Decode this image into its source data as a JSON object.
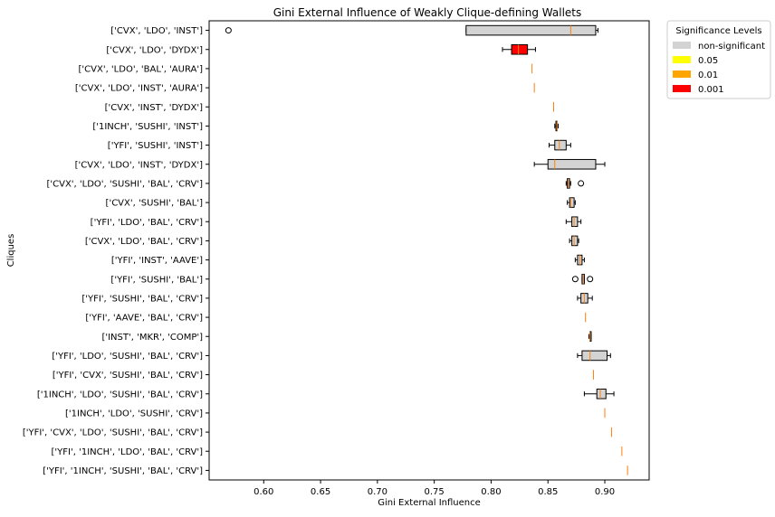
{
  "chart_data": {
    "type": "boxplot",
    "orientation": "horizontal",
    "title": "Gini External Influence of Weakly Clique-defining Wallets",
    "xlabel": "Gini External Influence",
    "ylabel": "Cliques",
    "xlim": [
      0.552,
      0.939
    ],
    "xticks": [
      0.6,
      0.65,
      0.7,
      0.75,
      0.8,
      0.85,
      0.9
    ],
    "xtick_labels": [
      "0.60",
      "0.65",
      "0.70",
      "0.75",
      "0.80",
      "0.85",
      "0.90"
    ],
    "grid": false,
    "legend": {
      "title": "Significance Levels",
      "placement": "top-right-outside",
      "entries": [
        {
          "label": "non-significant",
          "color": "#d3d3d3"
        },
        {
          "label": "0.05",
          "color": "#ffff00"
        },
        {
          "label": "0.01",
          "color": "#ffa500"
        },
        {
          "label": "0.001",
          "color": "#ff0000"
        }
      ]
    },
    "median_color": "#ff7f0e",
    "categories": [
      "['CVX', 'LDO', 'INST']",
      "['CVX', 'LDO', 'DYDX']",
      "['CVX', 'LDO', 'BAL', 'AURA']",
      "['CVX', 'LDO', 'INST', 'AURA']",
      "['CVX', 'INST', 'DYDX']",
      "['1INCH', 'SUSHI', 'INST']",
      "['YFI', 'SUSHI', 'INST']",
      "['CVX', 'LDO', 'INST', 'DYDX']",
      "['CVX', 'LDO', 'SUSHI', 'BAL', 'CRV']",
      "['CVX', 'SUSHI', 'BAL']",
      "['YFI', 'LDO', 'BAL', 'CRV']",
      "['CVX', 'LDO', 'BAL', 'CRV']",
      "['YFI', 'INST', 'AAVE']",
      "['YFI', 'SUSHI', 'BAL']",
      "['YFI', 'SUSHI', 'BAL', 'CRV']",
      "['YFI', 'AAVE', 'BAL', 'CRV']",
      "['INST', 'MKR', 'COMP']",
      "['YFI', 'LDO', 'SUSHI', 'BAL', 'CRV']",
      "['YFI', 'CVX', 'SUSHI', 'BAL', 'CRV']",
      "['1INCH', 'LDO', 'SUSHI', 'BAL', 'CRV']",
      "['1INCH', 'LDO', 'SUSHI', 'CRV']",
      "['YFI', 'CVX', 'LDO', 'SUSHI', 'BAL', 'CRV']",
      "['YFI', '1INCH', 'LDO', 'BAL', 'CRV']",
      "['YFI', '1INCH', 'SUSHI', 'BAL', 'CRV']"
    ],
    "boxes": [
      {
        "whislo": 0.778,
        "q1": 0.778,
        "med": 0.87,
        "q3": 0.892,
        "whishi": 0.894,
        "fliers": [
          0.569
        ],
        "significance": "non-significant"
      },
      {
        "whislo": 0.81,
        "q1": 0.818,
        "med": 0.824,
        "q3": 0.832,
        "whishi": 0.839,
        "fliers": [],
        "significance": "0.001"
      },
      {
        "whislo": 0.836,
        "q1": 0.836,
        "med": 0.836,
        "q3": 0.836,
        "whishi": 0.836,
        "fliers": [],
        "significance": "non-significant"
      },
      {
        "whislo": 0.838,
        "q1": 0.838,
        "med": 0.838,
        "q3": 0.838,
        "whishi": 0.838,
        "fliers": [],
        "significance": "non-significant"
      },
      {
        "whislo": 0.855,
        "q1": 0.855,
        "med": 0.855,
        "q3": 0.855,
        "whishi": 0.855,
        "fliers": [],
        "significance": "non-significant"
      },
      {
        "whislo": 0.856,
        "q1": 0.857,
        "med": 0.858,
        "q3": 0.858,
        "whishi": 0.859,
        "fliers": [],
        "significance": "non-significant"
      },
      {
        "whislo": 0.851,
        "q1": 0.856,
        "med": 0.86,
        "q3": 0.866,
        "whishi": 0.87,
        "fliers": [],
        "significance": "non-significant"
      },
      {
        "whislo": 0.838,
        "q1": 0.85,
        "med": 0.856,
        "q3": 0.892,
        "whishi": 0.9,
        "fliers": [],
        "significance": "non-significant"
      },
      {
        "whislo": 0.866,
        "q1": 0.867,
        "med": 0.868,
        "q3": 0.869,
        "whishi": 0.87,
        "fliers": [
          0.879
        ],
        "significance": "non-significant"
      },
      {
        "whislo": 0.867,
        "q1": 0.869,
        "med": 0.87,
        "q3": 0.873,
        "whishi": 0.874,
        "fliers": [],
        "significance": "non-significant"
      },
      {
        "whislo": 0.866,
        "q1": 0.871,
        "med": 0.873,
        "q3": 0.876,
        "whishi": 0.879,
        "fliers": [],
        "significance": "non-significant"
      },
      {
        "whislo": 0.869,
        "q1": 0.871,
        "med": 0.873,
        "q3": 0.876,
        "whishi": 0.877,
        "fliers": [],
        "significance": "non-significant"
      },
      {
        "whislo": 0.874,
        "q1": 0.876,
        "med": 0.878,
        "q3": 0.88,
        "whishi": 0.882,
        "fliers": [],
        "significance": "non-significant"
      },
      {
        "whislo": 0.88,
        "q1": 0.88,
        "med": 0.881,
        "q3": 0.882,
        "whishi": 0.882,
        "fliers": [
          0.874,
          0.887
        ],
        "significance": "non-significant"
      },
      {
        "whislo": 0.876,
        "q1": 0.879,
        "med": 0.882,
        "q3": 0.885,
        "whishi": 0.889,
        "fliers": [],
        "significance": "non-significant"
      },
      {
        "whislo": 0.883,
        "q1": 0.883,
        "med": 0.883,
        "q3": 0.883,
        "whishi": 0.883,
        "fliers": [],
        "significance": "non-significant"
      },
      {
        "whislo": 0.886,
        "q1": 0.887,
        "med": 0.887,
        "q3": 0.888,
        "whishi": 0.888,
        "fliers": [],
        "significance": "non-significant"
      },
      {
        "whislo": 0.876,
        "q1": 0.88,
        "med": 0.887,
        "q3": 0.902,
        "whishi": 0.905,
        "fliers": [],
        "significance": "non-significant"
      },
      {
        "whislo": 0.89,
        "q1": 0.89,
        "med": 0.89,
        "q3": 0.89,
        "whishi": 0.89,
        "fliers": [],
        "significance": "non-significant"
      },
      {
        "whislo": 0.882,
        "q1": 0.893,
        "med": 0.896,
        "q3": 0.901,
        "whishi": 0.908,
        "fliers": [],
        "significance": "non-significant"
      },
      {
        "whislo": 0.9,
        "q1": 0.9,
        "med": 0.9,
        "q3": 0.9,
        "whishi": 0.9,
        "fliers": [],
        "significance": "non-significant"
      },
      {
        "whislo": 0.906,
        "q1": 0.906,
        "med": 0.906,
        "q3": 0.906,
        "whishi": 0.906,
        "fliers": [],
        "significance": "non-significant"
      },
      {
        "whislo": 0.915,
        "q1": 0.915,
        "med": 0.915,
        "q3": 0.915,
        "whishi": 0.915,
        "fliers": [],
        "significance": "non-significant"
      },
      {
        "whislo": 0.92,
        "q1": 0.92,
        "med": 0.92,
        "q3": 0.92,
        "whishi": 0.92,
        "fliers": [],
        "significance": "non-significant"
      }
    ]
  }
}
